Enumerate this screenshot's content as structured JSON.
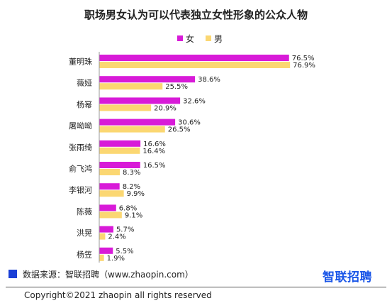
{
  "chart_data": {
    "type": "bar",
    "orientation": "horizontal",
    "title": "职场男女认为可以代表独立女性形象的公众人物",
    "categories": [
      "董明珠",
      "薇娅",
      "杨幂",
      "屠呦呦",
      "张雨绮",
      "俞飞鸿",
      "李银河",
      "陈薇",
      "洪晃",
      "杨笠"
    ],
    "series": [
      {
        "name": "女",
        "color": "#d81bd8",
        "values": [
          76.5,
          38.6,
          32.6,
          30.6,
          16.6,
          16.5,
          8.2,
          6.8,
          5.7,
          5.5
        ]
      },
      {
        "name": "男",
        "color": "#fbd772",
        "values": [
          76.9,
          25.5,
          20.9,
          26.5,
          16.4,
          8.3,
          9.9,
          9.1,
          2.4,
          1.9
        ]
      }
    ],
    "value_suffix": "%",
    "xlim": [
      0,
      80
    ],
    "grid": false,
    "legend_position": "top-center"
  },
  "source": {
    "text": "数据来源：智联招聘（www.zhaopin.com）"
  },
  "logo": {
    "text": "智联招聘"
  },
  "copyright": {
    "text": "Copyright©2021 zhaopin all rights reserved"
  }
}
